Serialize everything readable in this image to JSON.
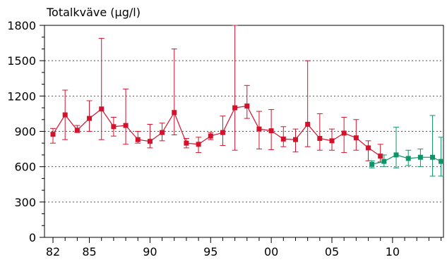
{
  "chart_data": {
    "type": "line",
    "title": "Totalkväve (µg/l)",
    "xlabel": "",
    "ylabel": "",
    "ylim": [
      0,
      1800
    ],
    "xlim": [
      1981.3,
      2014.2
    ],
    "y_ticks": [
      0,
      300,
      600,
      900,
      1200,
      1500,
      1800
    ],
    "y_tick_labels": [
      "0",
      "300",
      "600",
      "900",
      "1200",
      "1500",
      "1800"
    ],
    "x_ticks": [
      1982,
      1985,
      1990,
      1995,
      2000,
      2005,
      2010
    ],
    "x_tick_labels": [
      "82",
      "85",
      "90",
      "95",
      "00",
      "05",
      "10"
    ],
    "grid": "horizontal dotted",
    "legend": "none",
    "colors": {
      "red": "#d4122c",
      "green": "#0e9466"
    },
    "series": [
      {
        "color": "#d4122c",
        "points": [
          {
            "x": 1982,
            "y": 875,
            "ymin": 800,
            "ymax": 925
          },
          {
            "x": 1983,
            "y": 1040,
            "ymin": 830,
            "ymax": 1250
          },
          {
            "x": 1984,
            "y": 910,
            "ymin": 890,
            "ymax": 950
          },
          {
            "x": 1985,
            "y": 1010,
            "ymin": 900,
            "ymax": 1160
          },
          {
            "x": 1986,
            "y": 1090,
            "ymin": 830,
            "ymax": 1690
          },
          {
            "x": 1987,
            "y": 940,
            "ymin": 860,
            "ymax": 1020
          },
          {
            "x": 1988,
            "y": 950,
            "ymin": 790,
            "ymax": 1260
          },
          {
            "x": 1989,
            "y": 830,
            "ymin": 800,
            "ymax": 900
          },
          {
            "x": 1990,
            "y": 815,
            "ymin": 760,
            "ymax": 960
          },
          {
            "x": 1991,
            "y": 890,
            "ymin": 820,
            "ymax": 970
          },
          {
            "x": 1992,
            "y": 1060,
            "ymin": 870,
            "ymax": 1600
          },
          {
            "x": 1993,
            "y": 800,
            "ymin": 760,
            "ymax": 840
          },
          {
            "x": 1994,
            "y": 790,
            "ymin": 720,
            "ymax": 850
          },
          {
            "x": 1995,
            "y": 860,
            "ymin": 830,
            "ymax": 890
          },
          {
            "x": 1996,
            "y": 890,
            "ymin": 780,
            "ymax": 1030
          },
          {
            "x": 1997,
            "y": 1100,
            "ymin": 740,
            "ymax": 1800
          },
          {
            "x": 1998,
            "y": 1115,
            "ymin": 1010,
            "ymax": 1290
          },
          {
            "x": 1999,
            "y": 920,
            "ymin": 750,
            "ymax": 1070
          },
          {
            "x": 2000,
            "y": 905,
            "ymin": 745,
            "ymax": 1085
          },
          {
            "x": 2001,
            "y": 835,
            "ymin": 770,
            "ymax": 940
          },
          {
            "x": 2002,
            "y": 830,
            "ymin": 725,
            "ymax": 920
          },
          {
            "x": 2003,
            "y": 960,
            "ymin": 770,
            "ymax": 1500
          },
          {
            "x": 2004,
            "y": 840,
            "ymin": 740,
            "ymax": 1050
          },
          {
            "x": 2005,
            "y": 820,
            "ymin": 740,
            "ymax": 920
          },
          {
            "x": 2006,
            "y": 885,
            "ymin": 720,
            "ymax": 1020
          },
          {
            "x": 2007,
            "y": 845,
            "ymin": 740,
            "ymax": 1000
          },
          {
            "x": 2008,
            "y": 760,
            "ymin": 650,
            "ymax": 820
          },
          {
            "x": 2009,
            "y": 690,
            "ymin": 640,
            "ymax": 790
          }
        ]
      },
      {
        "color": "#0e9466",
        "points": [
          {
            "x": 2008.3,
            "y": 620,
            "ymin": 590,
            "ymax": 650
          },
          {
            "x": 2009.3,
            "y": 645,
            "ymin": 600,
            "ymax": 700
          },
          {
            "x": 2010.3,
            "y": 700,
            "ymin": 590,
            "ymax": 935
          },
          {
            "x": 2011.3,
            "y": 670,
            "ymin": 610,
            "ymax": 740
          },
          {
            "x": 2012.3,
            "y": 680,
            "ymin": 600,
            "ymax": 750
          },
          {
            "x": 2013.3,
            "y": 680,
            "ymin": 520,
            "ymax": 1035
          },
          {
            "x": 2014.0,
            "y": 645,
            "ymin": 520,
            "ymax": 850
          }
        ]
      }
    ]
  }
}
